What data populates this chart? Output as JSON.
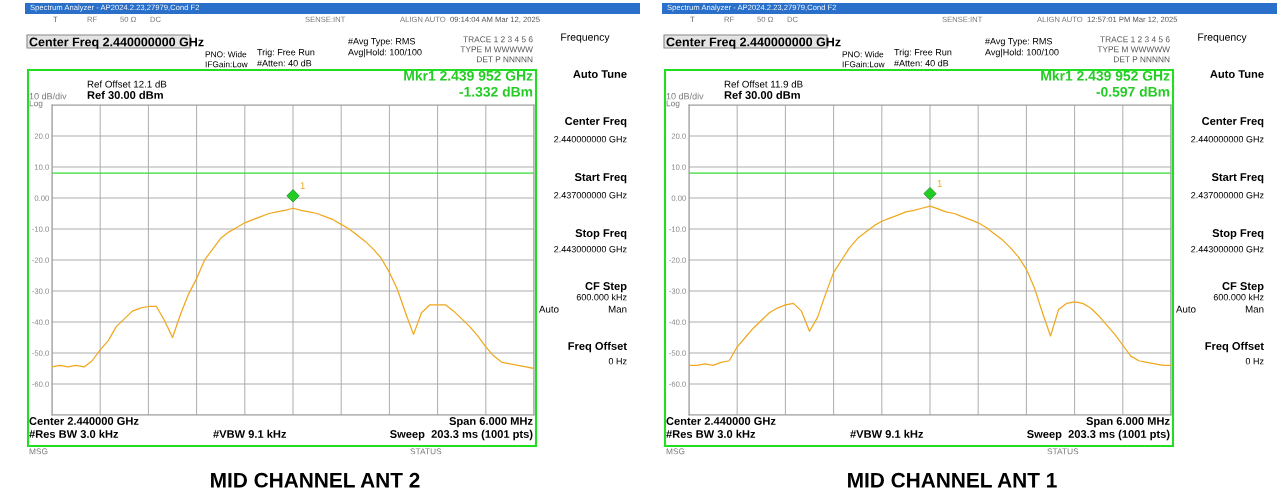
{
  "chart_data": [
    {
      "type": "line",
      "title": "MID CHANNEL ANT 2",
      "tick_labels": "y",
      "grid": true,
      "categories": [
        null,
        null,
        null,
        null,
        null,
        null,
        null,
        null,
        null,
        null,
        null,
        null,
        null,
        null,
        null,
        null,
        null,
        null,
        null,
        null,
        null,
        null,
        null,
        null,
        null,
        null,
        null,
        null,
        null,
        null,
        null,
        null,
        null,
        null,
        null,
        null,
        null,
        null,
        null,
        null,
        null,
        null,
        null,
        null,
        null,
        null,
        null,
        null,
        null,
        null,
        null,
        null,
        null,
        null,
        null,
        null,
        null,
        null,
        null,
        null,
        null
      ],
      "ylim": [
        -70,
        30
      ],
      "yticks": [
        {
          "value": 30,
          "label": null
        },
        {
          "value": 20,
          "label": "20.0"
        },
        {
          "value": 10,
          "label": "10.0"
        },
        {
          "value": 0,
          "label": "0.00"
        },
        {
          "value": -10,
          "label": "-10.0"
        },
        {
          "value": -20,
          "label": "-20.0"
        },
        {
          "value": -30,
          "label": "-30.0"
        },
        {
          "value": -40,
          "label": "-40.0"
        },
        {
          "value": -50,
          "label": "-50.0"
        },
        {
          "value": -60,
          "label": "-60.0"
        },
        {
          "value": -70,
          "label": null
        }
      ],
      "ref_lines": [
        {
          "axis": "y",
          "value": 8,
          "color": "#33dd33"
        }
      ],
      "series": [
        {
          "color": "#f0a81e",
          "values": [
            -54.5,
            -54,
            -54.5,
            -54,
            -54.5,
            -52.5,
            -49,
            -46,
            -41.5,
            -39,
            -36.5,
            -35.5,
            -35,
            -35,
            -39.5,
            -45,
            -37.5,
            -31,
            -26,
            -20,
            -16.5,
            -13,
            -11,
            -9.5,
            -8,
            -7,
            -6,
            -5,
            -4.5,
            -4,
            -3.3,
            -4,
            -4.5,
            -5,
            -6,
            -7,
            -8.5,
            -10,
            -12,
            -14,
            -16.5,
            -19.5,
            -24,
            -29.5,
            -37,
            -44,
            -37,
            -34.5,
            -34.5,
            -34.5,
            -36.5,
            -39,
            -41.5,
            -44.5,
            -48,
            -51,
            -53,
            -53.5,
            -54,
            -54.5,
            -55
          ]
        }
      ],
      "annotations": [
        "Spectrum Analyzer - AP2024.2.23,27979,Cond F2",
        "T",
        "RF",
        "50 Ω",
        "DC",
        "SENSE:INT",
        "ALIGN AUTO",
        "09:14:04 AM Mar 12, 2025",
        "Center Freq 2.440000000 GHz",
        "PNO: Wide",
        "IFGain:Low",
        "Trig: Free Run",
        "#Atten: 40 dB",
        "#Avg Type: RMS",
        "Avg|Hold: 100/100",
        "TRACE 1 2 3 4 5 6",
        "TYPE M WWWWW",
        "DET P NNNNN",
        "Ref Offset 12.1 dB",
        "10 dB/div",
        "Ref 30.00 dBm",
        "Log",
        "Mkr1 2.439 952 GHz",
        "-1.332 dBm",
        "Center 2.440000 GHz",
        "#Res BW 3.0 kHz",
        "#VBW 9.1 kHz",
        "Span 6.000 MHz",
        "Sweep  203.3 ms (1001 pts)",
        "MSG",
        "STATUS",
        "Frequency",
        "Auto Tune",
        "Center Freq",
        "2.440000000 GHz",
        "Start Freq",
        "2.437000000 GHz",
        "Stop Freq",
        "2.443000000 GHz",
        "CF Step",
        "600.000 kHz",
        "Auto",
        "Man",
        "Freq Offset",
        "0 Hz",
        "1"
      ]
    },
    {
      "type": "line",
      "title": "MID CHANNEL ANT 1",
      "tick_labels": "y",
      "grid": true,
      "categories": [
        null,
        null,
        null,
        null,
        null,
        null,
        null,
        null,
        null,
        null,
        null,
        null,
        null,
        null,
        null,
        null,
        null,
        null,
        null,
        null,
        null,
        null,
        null,
        null,
        null,
        null,
        null,
        null,
        null,
        null,
        null,
        null,
        null,
        null,
        null,
        null,
        null,
        null,
        null,
        null,
        null,
        null,
        null,
        null,
        null,
        null,
        null,
        null,
        null,
        null,
        null,
        null,
        null,
        null,
        null,
        null,
        null,
        null,
        null,
        null,
        null
      ],
      "ylim": [
        -70,
        30
      ],
      "yticks": [
        {
          "value": 30,
          "label": null
        },
        {
          "value": 20,
          "label": "20.0"
        },
        {
          "value": 10,
          "label": "10.0"
        },
        {
          "value": 0,
          "label": "0.00"
        },
        {
          "value": -10,
          "label": "-10.0"
        },
        {
          "value": -20,
          "label": "-20.0"
        },
        {
          "value": -30,
          "label": "-30.0"
        },
        {
          "value": -40,
          "label": "-40.0"
        },
        {
          "value": -50,
          "label": "-50.0"
        },
        {
          "value": -60,
          "label": "-60.0"
        },
        {
          "value": -70,
          "label": null
        }
      ],
      "ref_lines": [
        {
          "axis": "y",
          "value": 8,
          "color": "#33dd33"
        }
      ],
      "series": [
        {
          "color": "#f0a81e",
          "values": [
            -54,
            -54,
            -53.5,
            -54,
            -53,
            -52.5,
            -48,
            -45,
            -42,
            -39.5,
            -37,
            -35.5,
            -34.5,
            -34,
            -36.5,
            -43,
            -38.5,
            -31,
            -24,
            -20,
            -16,
            -13,
            -11,
            -9,
            -7.5,
            -6.5,
            -5.5,
            -4.5,
            -4,
            -3.3,
            -2.6,
            -3.5,
            -4.5,
            -5,
            -6,
            -7,
            -8,
            -9.5,
            -11.5,
            -13.5,
            -16,
            -19,
            -23,
            -29,
            -37,
            -44.5,
            -36,
            -34,
            -33.5,
            -34,
            -35.5,
            -38,
            -41,
            -44,
            -47.5,
            -51,
            -52.5,
            -53,
            -53.5,
            -54,
            -54
          ]
        }
      ],
      "annotations": [
        "Spectrum Analyzer - AP2024.2.23,27979,Cond F2",
        "T",
        "RF",
        "50 Ω",
        "DC",
        "SENSE:INT",
        "ALIGN AUTO",
        "12:57:01 PM Mar 12, 2025",
        "Center Freq 2.440000000 GHz",
        "PNO: Wide",
        "IFGain:Low",
        "Trig: Free Run",
        "#Atten: 40 dB",
        "#Avg Type: RMS",
        "Avg|Hold: 100/100",
        "TRACE 1 2 3 4 5 6",
        "TYPE M WWWWW",
        "DET P NNNNN",
        "Ref Offset 11.9 dB",
        "10 dB/div",
        "Ref 30.00 dBm",
        "Log",
        "Mkr1 2.439 952 GHz",
        "-0.597 dBm",
        "Center 2.440000 GHz",
        "#Res BW 3.0 kHz",
        "#VBW 9.1 kHz",
        "Span 6.000 MHz",
        "Sweep  203.3 ms (1001 pts)",
        "MSG",
        "STATUS",
        "Frequency",
        "Auto Tune",
        "Center Freq",
        "2.440000000 GHz",
        "Start Freq",
        "2.437000000 GHz",
        "Stop Freq",
        "2.443000000 GHz",
        "CF Step",
        "600.000 kHz",
        "Auto",
        "Man",
        "Freq Offset",
        "0 Hz",
        "1"
      ]
    }
  ]
}
